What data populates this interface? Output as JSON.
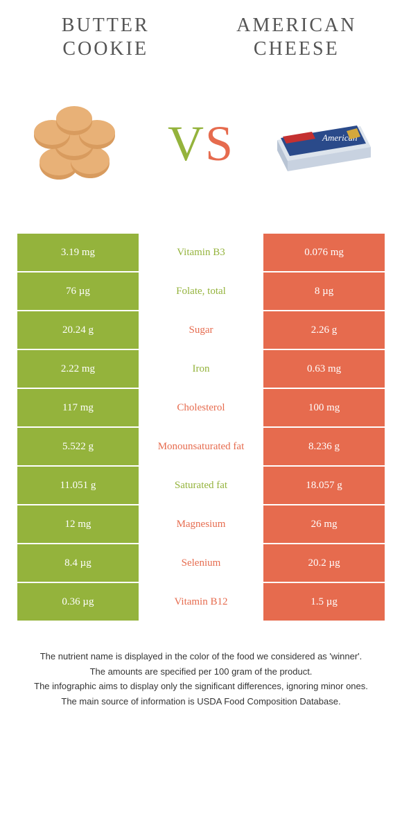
{
  "header": {
    "left_title": "BUTTER COOKIE",
    "right_title": "AMERICAN CHEESE"
  },
  "vs": {
    "v": "V",
    "s": "S"
  },
  "colors": {
    "green": "#94b33c",
    "orange": "#e66b4e",
    "white": "#ffffff",
    "text": "#333333"
  },
  "rows": [
    {
      "left": "3.19 mg",
      "label": "Vitamin B3",
      "right": "0.076 mg",
      "winner": "left"
    },
    {
      "left": "76 µg",
      "label": "Folate, total",
      "right": "8 µg",
      "winner": "left"
    },
    {
      "left": "20.24 g",
      "label": "Sugar",
      "right": "2.26 g",
      "winner": "right"
    },
    {
      "left": "2.22 mg",
      "label": "Iron",
      "right": "0.63 mg",
      "winner": "left"
    },
    {
      "left": "117 mg",
      "label": "Cholesterol",
      "right": "100 mg",
      "winner": "right"
    },
    {
      "left": "5.522 g",
      "label": "Monounsaturated fat",
      "right": "8.236 g",
      "winner": "right"
    },
    {
      "left": "11.051 g",
      "label": "Saturated fat",
      "right": "18.057 g",
      "winner": "left"
    },
    {
      "left": "12 mg",
      "label": "Magnesium",
      "right": "26 mg",
      "winner": "right"
    },
    {
      "left": "8.4 µg",
      "label": "Selenium",
      "right": "20.2 µg",
      "winner": "right"
    },
    {
      "left": "0.36 µg",
      "label": "Vitamin B12",
      "right": "1.5 µg",
      "winner": "right"
    }
  ],
  "footer": {
    "line1": "The nutrient name is displayed in the color of the food we considered as 'winner'.",
    "line2": "The amounts are specified per 100 gram of the product.",
    "line3": "The infographic aims to display only the significant differences, ignoring minor ones.",
    "line4": "The main source of information is USDA Food Composition Database."
  }
}
